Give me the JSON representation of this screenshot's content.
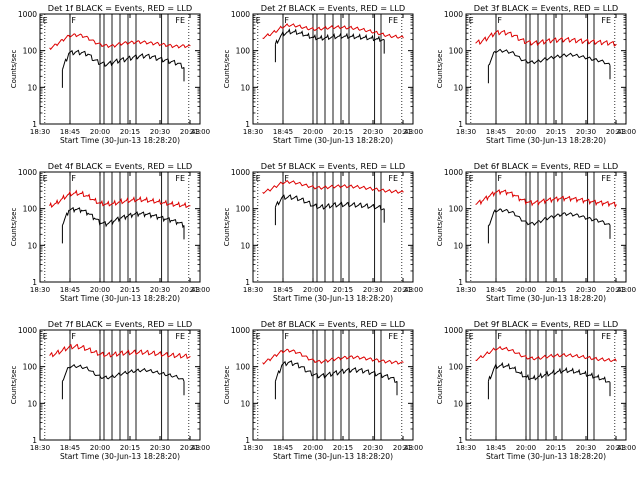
{
  "figure": {
    "xlabel": "Start Time (30-Jun-13 18:28:20)",
    "ylabel": "Counts/sec",
    "x_tick_labels": [
      "18:30",
      "18:45",
      "20:00",
      "20:15",
      "20:30",
      "20:43",
      "21:00"
    ],
    "y_tick_labels": [
      "1",
      "10",
      "100",
      "1000"
    ],
    "colors": {
      "events": "#000000",
      "lld": "#dd0000",
      "axes": "#000000"
    }
  },
  "chart_data": [
    {
      "type": "line",
      "title": "Det 1f BLACK = Events, RED = LLD",
      "xlabel": "Start Time (30-Jun-13 18:28:20)",
      "ylabel": "Counts/sec",
      "y_scale": "log",
      "ylim": [
        1,
        1000
      ],
      "x_ticks": [
        "18:30",
        "18:45",
        "20:00",
        "20:15",
        "20:30",
        "20:43",
        "21:00"
      ],
      "markers": [
        "E",
        "F",
        "FE"
      ],
      "series": [
        {
          "values": [
            120,
            150,
            200,
            260,
            280,
            270,
            230,
            180,
            150,
            140,
            140,
            160,
            170,
            175,
            180,
            175,
            165,
            160,
            150,
            140,
            135,
            140,
            135
          ]
        },
        {
          "values": [
            0,
            0,
            30,
            85,
            90,
            88,
            80,
            55,
            45,
            42,
            48,
            55,
            58,
            65,
            70,
            72,
            68,
            60,
            55,
            50,
            45,
            35,
            0
          ]
        }
      ]
    },
    {
      "type": "line",
      "title": "Det 2f BLACK = Events, RED = LLD",
      "xlabel": "Start Time (30-Jun-13 18:28:20)",
      "ylabel": "Counts/sec",
      "y_scale": "log",
      "ylim": [
        1,
        1000
      ],
      "x_ticks": [
        "18:30",
        "18:45",
        "20:00",
        "20:15",
        "20:30",
        "20:43",
        "21:00"
      ],
      "markers": [
        "E",
        "F",
        "FE"
      ],
      "series": [
        {
          "values": [
            220,
            260,
            320,
            420,
            480,
            470,
            430,
            390,
            370,
            380,
            400,
            420,
            420,
            410,
            400,
            380,
            350,
            320,
            290,
            260,
            240,
            230,
            220
          ]
        },
        {
          "values": [
            0,
            0,
            150,
            280,
            330,
            330,
            300,
            260,
            230,
            220,
            230,
            240,
            250,
            250,
            245,
            240,
            230,
            220,
            210,
            200,
            0,
            0,
            0
          ]
        }
      ]
    },
    {
      "type": "line",
      "title": "Det 3f BLACK = Events, RED = LLD",
      "xlabel": "Start Time (30-Jun-13 18:28:20)",
      "ylabel": "Counts/sec",
      "y_scale": "log",
      "ylim": [
        1,
        1000
      ],
      "x_ticks": [
        "18:30",
        "18:45",
        "20:00",
        "20:15",
        "20:30",
        "20:43",
        "21:00"
      ],
      "markers": [
        "E",
        "F",
        "FE"
      ],
      "series": [
        {
          "values": [
            160,
            180,
            230,
            300,
            320,
            300,
            260,
            200,
            170,
            160,
            165,
            180,
            190,
            195,
            200,
            195,
            185,
            180,
            175,
            170,
            165,
            160,
            150
          ]
        },
        {
          "values": [
            0,
            0,
            40,
            95,
            100,
            95,
            85,
            60,
            50,
            48,
            52,
            60,
            65,
            70,
            75,
            78,
            72,
            66,
            60,
            55,
            50,
            40,
            0
          ]
        }
      ]
    },
    {
      "type": "line",
      "title": "Det 4f BLACK = Events, RED = LLD",
      "xlabel": "Start Time (30-Jun-13 18:28:20)",
      "ylabel": "Counts/sec",
      "y_scale": "log",
      "ylim": [
        1,
        1000
      ],
      "x_ticks": [
        "18:30",
        "18:45",
        "20:00",
        "20:15",
        "20:30",
        "20:43",
        "21:00"
      ],
      "markers": [
        "E",
        "F",
        "FE"
      ],
      "series": [
        {
          "values": [
            120,
            140,
            190,
            250,
            270,
            260,
            220,
            170,
            140,
            135,
            140,
            155,
            165,
            175,
            180,
            175,
            165,
            155,
            145,
            135,
            130,
            125,
            120
          ]
        },
        {
          "values": [
            0,
            0,
            35,
            90,
            95,
            90,
            75,
            55,
            40,
            38,
            45,
            55,
            60,
            68,
            72,
            70,
            65,
            58,
            52,
            48,
            42,
            35,
            0
          ]
        }
      ]
    },
    {
      "type": "line",
      "title": "Det 5f BLACK = Events, RED = LLD",
      "xlabel": "Start Time (30-Jun-13 18:28:20)",
      "ylabel": "Counts/sec",
      "y_scale": "log",
      "ylim": [
        1,
        1000
      ],
      "x_ticks": [
        "18:30",
        "18:45",
        "20:00",
        "20:15",
        "20:30",
        "20:43",
        "21:00"
      ],
      "markers": [
        "E",
        "F",
        "FE"
      ],
      "series": [
        {
          "values": [
            280,
            320,
            400,
            500,
            540,
            520,
            470,
            420,
            380,
            370,
            380,
            400,
            410,
            410,
            400,
            390,
            370,
            350,
            330,
            310,
            300,
            290,
            280
          ]
        },
        {
          "values": [
            0,
            0,
            110,
            200,
            210,
            200,
            180,
            150,
            120,
            110,
            115,
            125,
            130,
            130,
            128,
            125,
            120,
            115,
            110,
            100,
            0,
            0,
            0
          ]
        }
      ]
    },
    {
      "type": "line",
      "title": "Det 6f BLACK = Events, RED = LLD",
      "xlabel": "Start Time (30-Jun-13 18:28:20)",
      "ylabel": "Counts/sec",
      "y_scale": "log",
      "ylim": [
        1,
        1000
      ],
      "x_ticks": [
        "18:30",
        "18:45",
        "20:00",
        "20:15",
        "20:30",
        "20:43",
        "21:00"
      ],
      "markers": [
        "E",
        "F",
        "FE"
      ],
      "series": [
        {
          "values": [
            130,
            160,
            210,
            270,
            290,
            275,
            235,
            180,
            150,
            140,
            150,
            165,
            175,
            185,
            190,
            185,
            175,
            165,
            155,
            145,
            140,
            135,
            130
          ]
        },
        {
          "values": [
            0,
            0,
            35,
            90,
            95,
            90,
            78,
            55,
            42,
            40,
            46,
            56,
            62,
            70,
            75,
            73,
            68,
            60,
            54,
            50,
            44,
            36,
            0
          ]
        }
      ]
    },
    {
      "type": "line",
      "title": "Det 7f BLACK = Events, RED = LLD",
      "xlabel": "Start Time (30-Jun-13 18:28:20)",
      "ylabel": "Counts/sec",
      "y_scale": "log",
      "ylim": [
        1,
        1000
      ],
      "x_ticks": [
        "18:30",
        "18:45",
        "20:00",
        "20:15",
        "20:30",
        "20:43",
        "21:00"
      ],
      "markers": [
        "E",
        "F",
        "FE"
      ],
      "series": [
        {
          "values": [
            200,
            230,
            280,
            340,
            360,
            340,
            300,
            250,
            220,
            210,
            215,
            230,
            240,
            245,
            250,
            245,
            235,
            225,
            215,
            205,
            200,
            195,
            190
          ]
        },
        {
          "values": [
            0,
            0,
            40,
            95,
            100,
            95,
            85,
            62,
            50,
            48,
            52,
            60,
            66,
            72,
            76,
            78,
            72,
            66,
            60,
            55,
            50,
            40,
            0
          ]
        }
      ]
    },
    {
      "type": "line",
      "title": "Det 8f BLACK = Events, RED = LLD",
      "xlabel": "Start Time (30-Jun-13 18:28:20)",
      "ylabel": "Counts/sec",
      "y_scale": "log",
      "ylim": [
        1,
        1000
      ],
      "x_ticks": [
        "18:30",
        "18:45",
        "20:00",
        "20:15",
        "20:30",
        "20:43",
        "21:00"
      ],
      "markers": [
        "E",
        "F",
        "FE"
      ],
      "series": [
        {
          "values": [
            130,
            160,
            210,
            270,
            290,
            270,
            230,
            180,
            150,
            140,
            150,
            165,
            175,
            185,
            190,
            185,
            175,
            165,
            155,
            145,
            140,
            135,
            130
          ]
        },
        {
          "values": [
            0,
            0,
            40,
            110,
            130,
            120,
            100,
            75,
            60,
            55,
            58,
            65,
            70,
            78,
            82,
            80,
            75,
            68,
            62,
            56,
            50,
            40,
            0
          ]
        }
      ]
    },
    {
      "type": "line",
      "title": "Det 9f BLACK = Events, RED = LLD",
      "xlabel": "Start Time (30-Jun-13 18:28:20)",
      "ylabel": "Counts/sec",
      "y_scale": "log",
      "ylim": [
        1,
        1000
      ],
      "x_ticks": [
        "18:30",
        "18:45",
        "20:00",
        "20:15",
        "20:30",
        "20:43",
        "21:00"
      ],
      "markers": [
        "E",
        "F",
        "FE"
      ],
      "series": [
        {
          "values": [
            150,
            180,
            230,
            290,
            310,
            290,
            250,
            200,
            170,
            160,
            165,
            180,
            190,
            195,
            200,
            195,
            185,
            175,
            165,
            155,
            150,
            145,
            140
          ]
        },
        {
          "values": [
            0,
            0,
            40,
            100,
            110,
            105,
            90,
            65,
            52,
            48,
            55,
            62,
            68,
            75,
            80,
            78,
            72,
            65,
            58,
            52,
            46,
            38,
            0
          ]
        }
      ]
    }
  ]
}
